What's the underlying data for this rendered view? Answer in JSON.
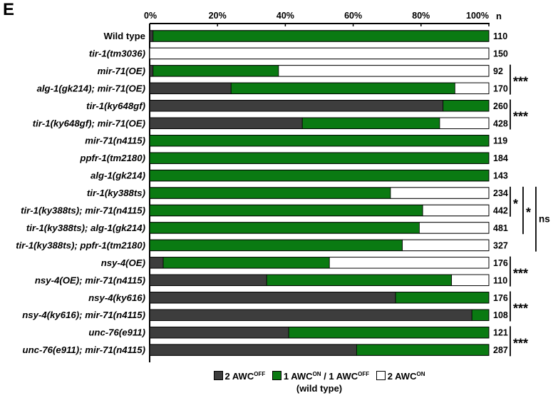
{
  "panel_label": "E",
  "chart_data": {
    "type": "stacked-bar-horizontal",
    "x_ticks": [
      "0%",
      "20%",
      "40%",
      "60%",
      "80%",
      "100%"
    ],
    "xlim": [
      0,
      100
    ],
    "n_header": "n",
    "categories": [
      "Wild type",
      "tir-1(tm3036)",
      "mir-71(OE)",
      "alg-1(gk214); mir-71(OE)",
      "tir-1(ky648gf)",
      "tir-1(ky648gf); mir-71(OE)",
      "mir-71(n4115)",
      "ppfr-1(tm2180)",
      "alg-1(gk214)",
      "tir-1(ky388ts)",
      "tir-1(ky388ts); mir-71(n4115)",
      "tir-1(ky388ts); alg-1(gk214)",
      "tir-1(ky388ts); ppfr-1(tm2180)",
      "nsy-4(OE)",
      "nsy-4(OE); mir-71(n4115)",
      "nsy-4(ky616)",
      "nsy-4(ky616); mir-71(n4115)",
      "unc-76(e911)",
      "unc-76(e911); mir-71(n4115)"
    ],
    "n_values": [
      "110",
      "150",
      "92",
      "170",
      "260",
      "428",
      "119",
      "184",
      "143",
      "234",
      "442",
      "481",
      "327",
      "176",
      "110",
      "176",
      "108",
      "121",
      "287"
    ],
    "series": [
      {
        "key": "off",
        "color": "#3d3d3d",
        "values": [
          1,
          0,
          1,
          24,
          86.5,
          45,
          0,
          0,
          0,
          0,
          0,
          0,
          0,
          4,
          34.5,
          72.5,
          95,
          41,
          61
        ]
      },
      {
        "key": "mixed",
        "color": "#0a7a12",
        "values": [
          99,
          0,
          37,
          66,
          13.5,
          40.5,
          100,
          100,
          100,
          71,
          80.5,
          79.5,
          74.5,
          49,
          54.5,
          27.5,
          5,
          59,
          39
        ]
      },
      {
        "key": "on",
        "color": "#ffffff",
        "values": [
          0,
          100,
          62,
          10,
          0,
          14.5,
          0,
          0,
          0,
          29,
          19.5,
          20.5,
          25.5,
          47,
          11,
          0,
          0,
          0,
          0
        ]
      }
    ],
    "significance": [
      {
        "rows": [
          2,
          3
        ],
        "label": "***",
        "level": 0
      },
      {
        "rows": [
          4,
          5
        ],
        "label": "***",
        "level": 0
      },
      {
        "rows": [
          9,
          10
        ],
        "label": "*",
        "level": 0
      },
      {
        "rows": [
          9,
          11
        ],
        "label": "*",
        "level": 1
      },
      {
        "rows": [
          9,
          12
        ],
        "label": "ns",
        "level": 2
      },
      {
        "rows": [
          13,
          14
        ],
        "label": "***",
        "level": 0
      },
      {
        "rows": [
          15,
          16
        ],
        "label": "***",
        "level": 0
      },
      {
        "rows": [
          17,
          18
        ],
        "label": "***",
        "level": 0
      }
    ],
    "legend": {
      "off": {
        "num": "2",
        "base": "AWC",
        "sup": "OFF"
      },
      "mixed": {
        "num1": "1",
        "base1": "AWC",
        "sup1": "ON",
        "sep": " / ",
        "num2": "1",
        "base2": "AWC",
        "sup2": "OFF"
      },
      "on": {
        "num": "2",
        "base": "AWC",
        "sup": "ON"
      },
      "note": "(wild type)"
    }
  }
}
